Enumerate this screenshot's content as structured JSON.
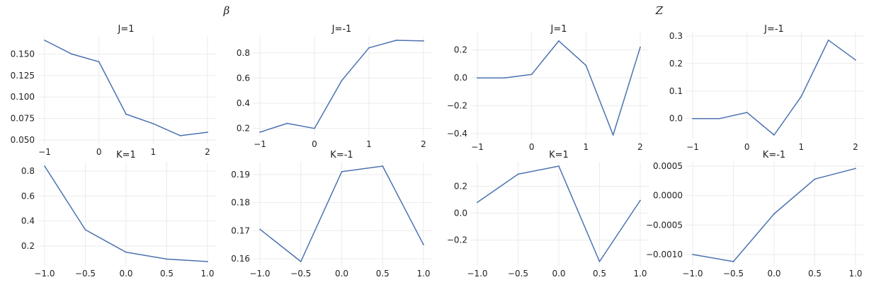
{
  "figure": {
    "group_titles": [
      "β",
      "Z"
    ]
  },
  "chart_data": [
    {
      "type": "line",
      "title": "J=1",
      "xlabel": "",
      "ylabel": "",
      "x": [
        -1,
        -0.5,
        0,
        0.5,
        1,
        1.5,
        2
      ],
      "series": [
        {
          "values": [
            0.166,
            0.15,
            0.141,
            0.08,
            0.069,
            0.055,
            0.059
          ]
        }
      ],
      "xlim": [
        -1,
        2
      ],
      "ylim": [
        0.05,
        0.166
      ],
      "xticks": [
        -1,
        0,
        1,
        2
      ],
      "xtick_labels": [
        "−1",
        "0",
        "1",
        "2"
      ],
      "yticks": [
        0.05,
        0.075,
        0.1,
        0.125,
        0.15
      ],
      "ytick_labels": [
        "0.050",
        "0.075",
        "0.100",
        "0.125",
        "0.150"
      ],
      "grid": true
    },
    {
      "type": "line",
      "title": "J=-1",
      "xlabel": "",
      "ylabel": "",
      "x": [
        -1,
        -0.5,
        0,
        0.5,
        1,
        1.5,
        2
      ],
      "series": [
        {
          "values": [
            0.17,
            0.24,
            0.2,
            0.58,
            0.84,
            0.9,
            0.895
          ]
        }
      ],
      "xlim": [
        -1,
        2
      ],
      "ylim": [
        0.17,
        0.9
      ],
      "xticks": [
        -1,
        0,
        1,
        2
      ],
      "xtick_labels": [
        "−1",
        "0",
        "1",
        "2"
      ],
      "yticks": [
        0.2,
        0.4,
        0.6,
        0.8
      ],
      "ytick_labels": [
        "0.2",
        "0.4",
        "0.6",
        "0.8"
      ],
      "grid": true
    },
    {
      "type": "line",
      "title": "J=1",
      "xlabel": "",
      "ylabel": "",
      "x": [
        -1,
        -0.5,
        0,
        0.5,
        1,
        1.5,
        2
      ],
      "series": [
        {
          "values": [
            0.0,
            0.0,
            0.025,
            0.265,
            0.09,
            -0.41,
            0.22
          ]
        }
      ],
      "xlim": [
        -1,
        2
      ],
      "ylim": [
        -0.41,
        0.3
      ],
      "xticks": [
        -1,
        0,
        1,
        2
      ],
      "xtick_labels": [
        "−1",
        "0",
        "1",
        "2"
      ],
      "yticks": [
        -0.4,
        -0.2,
        0.0,
        0.2
      ],
      "ytick_labels": [
        "−0.4",
        "−0.2",
        "0.0",
        "0.2"
      ],
      "grid": true
    },
    {
      "type": "line",
      "title": "J=-1",
      "xlabel": "",
      "ylabel": "",
      "x": [
        -1,
        -0.5,
        0,
        0.5,
        1,
        1.5,
        2
      ],
      "series": [
        {
          "values": [
            0.0,
            0.0,
            0.022,
            -0.06,
            0.08,
            0.285,
            0.213
          ]
        }
      ],
      "xlim": [
        -1,
        2
      ],
      "ylim": [
        -0.06,
        0.3
      ],
      "xticks": [
        -1,
        0,
        1,
        2
      ],
      "xtick_labels": [
        "−1",
        "0",
        "1",
        "2"
      ],
      "yticks": [
        0.0,
        0.1,
        0.2,
        0.3
      ],
      "ytick_labels": [
        "0.0",
        "0.1",
        "0.2",
        "0.3"
      ],
      "grid": true
    },
    {
      "type": "line",
      "title": "K=1",
      "xlabel": "",
      "ylabel": "",
      "x": [
        -1,
        -0.5,
        0,
        0.5,
        1
      ],
      "series": [
        {
          "values": [
            0.84,
            0.33,
            0.15,
            0.095,
            0.075
          ]
        }
      ],
      "xlim": [
        -1,
        1
      ],
      "ylim": [
        0.075,
        0.84
      ],
      "xticks": [
        -1,
        -0.5,
        0,
        0.5,
        1
      ],
      "xtick_labels": [
        "−1.0",
        "−0.5",
        "0.0",
        "0.5",
        "1.0"
      ],
      "yticks": [
        0.2,
        0.4,
        0.6,
        0.8
      ],
      "ytick_labels": [
        "0.2",
        "0.4",
        "0.6",
        "0.8"
      ],
      "grid": true
    },
    {
      "type": "line",
      "title": "K=-1",
      "xlabel": "",
      "ylabel": "",
      "x": [
        -1,
        -0.5,
        0,
        0.5,
        1
      ],
      "series": [
        {
          "values": [
            0.1705,
            0.159,
            0.191,
            0.193,
            0.165
          ]
        }
      ],
      "xlim": [
        -1,
        1
      ],
      "ylim": [
        0.159,
        0.193
      ],
      "xticks": [
        -1,
        -0.5,
        0,
        0.5,
        1
      ],
      "xtick_labels": [
        "−1.0",
        "−0.5",
        "0.0",
        "0.5",
        "1.0"
      ],
      "yticks": [
        0.16,
        0.17,
        0.18,
        0.19
      ],
      "ytick_labels": [
        "0.16",
        "0.17",
        "0.18",
        "0.19"
      ],
      "grid": true
    },
    {
      "type": "line",
      "title": "K=1",
      "xlabel": "",
      "ylabel": "",
      "x": [
        -1,
        -0.5,
        0,
        0.5,
        1
      ],
      "series": [
        {
          "values": [
            0.08,
            0.29,
            0.35,
            -0.36,
            0.095
          ]
        }
      ],
      "xlim": [
        -1,
        1
      ],
      "ylim": [
        -0.36,
        0.35
      ],
      "xticks": [
        -1,
        -0.5,
        0,
        0.5,
        1
      ],
      "xtick_labels": [
        "−1.0",
        "−0.5",
        "0.0",
        "0.5",
        "1.0"
      ],
      "yticks": [
        -0.2,
        0.0,
        0.2
      ],
      "ytick_labels": [
        "−0.2",
        "0.0",
        "0.2"
      ],
      "grid": true
    },
    {
      "type": "line",
      "title": "K=-1",
      "xlabel": "",
      "ylabel": "",
      "x": [
        -1,
        -0.5,
        0,
        0.5,
        1
      ],
      "series": [
        {
          "values": [
            -0.001,
            -0.00112,
            -0.00031,
            0.00028,
            0.00046
          ]
        }
      ],
      "xlim": [
        -1,
        1
      ],
      "ylim": [
        -0.00112,
        0.0005
      ],
      "xticks": [
        -1,
        -0.5,
        0,
        0.5,
        1
      ],
      "xtick_labels": [
        "−1.0",
        "−0.5",
        "0.0",
        "0.5",
        "1.0"
      ],
      "yticks": [
        -0.001,
        -0.0005,
        0.0,
        0.0005
      ],
      "ytick_labels": [
        "−0.0010",
        "−0.0005",
        "0.0000",
        "0.0005"
      ],
      "grid": true
    }
  ],
  "colors": {
    "series": "#4c72b0",
    "grid": "#ebebeb",
    "text": "#222222"
  }
}
